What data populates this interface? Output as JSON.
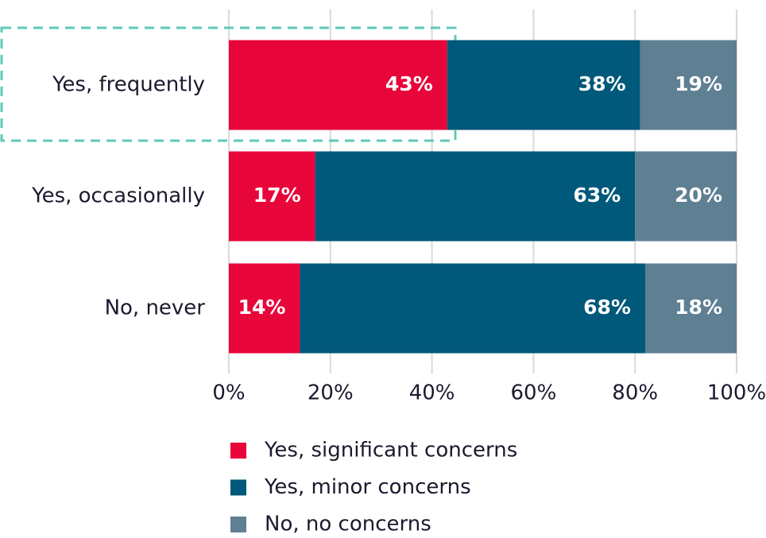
{
  "chart_data": {
    "type": "stacked-bar",
    "orientation": "horizontal",
    "categories": [
      "Yes, frequently",
      "Yes, occasionally",
      "No, never"
    ],
    "series": [
      {
        "name": "Yes, significant concerns",
        "color": "#e8053a",
        "values": [
          43,
          17,
          14
        ],
        "value_labels": [
          "43%",
          "17%",
          "14%"
        ]
      },
      {
        "name": "Yes, minor concerns",
        "color": "#00587a",
        "values": [
          38,
          63,
          68
        ],
        "value_labels": [
          "38%",
          "63%",
          "68%"
        ]
      },
      {
        "name": "No, no concerns",
        "color": "#5f7f93",
        "values": [
          19,
          20,
          18
        ],
        "value_labels": [
          "19%",
          "20%",
          "18%"
        ]
      }
    ],
    "xlim": [
      0,
      100
    ],
    "xticks": [
      {
        "value": 0,
        "label": "0%"
      },
      {
        "value": 20,
        "label": "20%"
      },
      {
        "value": 40,
        "label": "40%"
      },
      {
        "value": 60,
        "label": "60%"
      },
      {
        "value": 80,
        "label": "80%"
      },
      {
        "value": 100,
        "label": "100%"
      }
    ],
    "grid": true,
    "legend": "bottom"
  }
}
